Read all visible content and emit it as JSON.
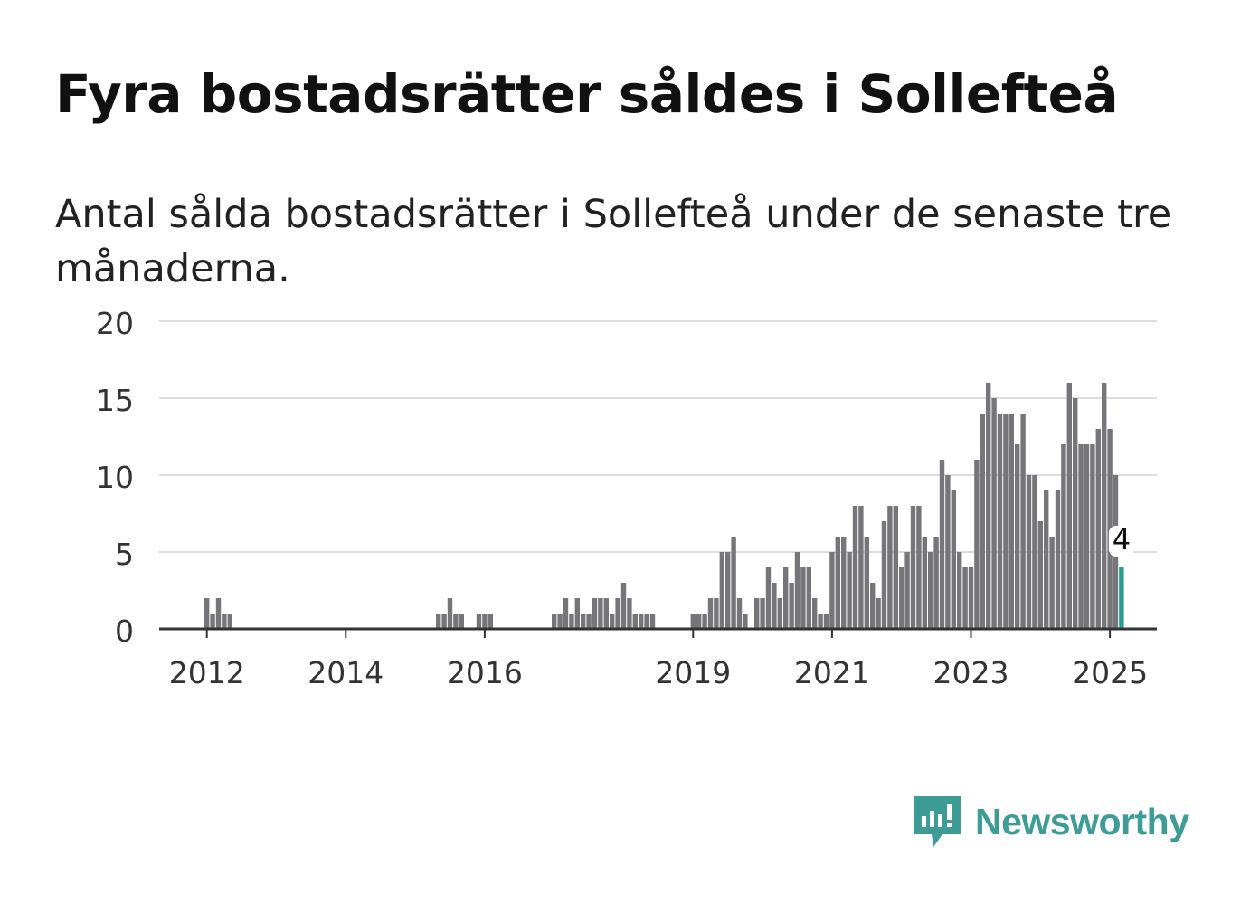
{
  "title": "Fyra bostadsrätter såldes i Sollefteå",
  "subtitle": "Antal sålda bostadsrätter i Sollefteå under de senaste tre månaderna.",
  "brand": {
    "name": "Newsworthy",
    "icon": "newsworthy-logo-icon",
    "color": "#3e9c97"
  },
  "chart_data": {
    "type": "bar",
    "ylim": [
      0,
      20
    ],
    "yticks": [
      "0",
      "5",
      "10",
      "15",
      "20"
    ],
    "xticks": [
      "2012",
      "2014",
      "2016",
      "2019",
      "2021",
      "2023",
      "2025"
    ],
    "series": [
      {
        "values": [
          2,
          1,
          2,
          1,
          1,
          0,
          0,
          0,
          0,
          0,
          0,
          0,
          0,
          0,
          0,
          0,
          0,
          0,
          0,
          0,
          0,
          0,
          0,
          0,
          0,
          0,
          0,
          0,
          0,
          0,
          0,
          0,
          0,
          0,
          0,
          0,
          0,
          0,
          0,
          0,
          1,
          1,
          2,
          1,
          1,
          0,
          0,
          1,
          1,
          1,
          0,
          0,
          0,
          0,
          0,
          0,
          0,
          0,
          0,
          0,
          1,
          1,
          2,
          1,
          2,
          1,
          1,
          2,
          2,
          2,
          1,
          2,
          3,
          2,
          1,
          1,
          1,
          1,
          0,
          0,
          0,
          0,
          0,
          0,
          1,
          1,
          1,
          2,
          2,
          5,
          5,
          6,
          2,
          1,
          0,
          2,
          2,
          4,
          3,
          2,
          4,
          3,
          5,
          4,
          4,
          2,
          1,
          1,
          5,
          6,
          6,
          5,
          8,
          8,
          6,
          3,
          2,
          7,
          8,
          8,
          4,
          5,
          8,
          8,
          6,
          5,
          6,
          11,
          10,
          9,
          5,
          4,
          4,
          11,
          14,
          16,
          15,
          14,
          14,
          14,
          12,
          14,
          10,
          10,
          7,
          9,
          6,
          9,
          12,
          16,
          15,
          12,
          12,
          12,
          13,
          16,
          13,
          10,
          4
        ],
        "color": "#76757a",
        "last_color": "#2a9d8f"
      }
    ],
    "annotation": {
      "label": "4"
    },
    "grid": true
  }
}
